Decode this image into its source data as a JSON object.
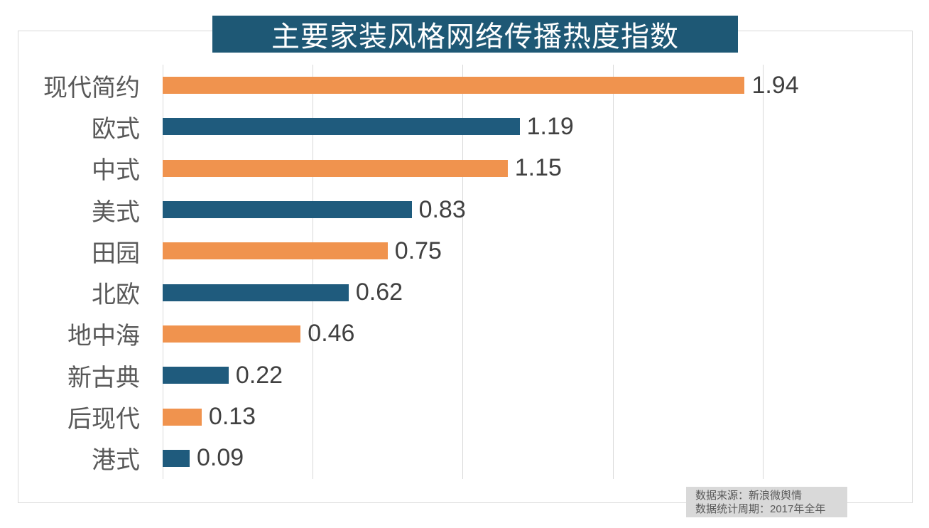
{
  "chart_data": {
    "type": "bar",
    "orientation": "horizontal",
    "title": "主要家装风格网络传播热度指数",
    "categories": [
      "现代简约",
      "欧式",
      "中式",
      "美式",
      "田园",
      "北欧",
      "地中海",
      "新古典",
      "后现代",
      "港式"
    ],
    "values": [
      1.94,
      1.19,
      1.15,
      0.83,
      0.75,
      0.62,
      0.46,
      0.22,
      0.13,
      0.09
    ],
    "value_labels": [
      "1.94",
      "1.19",
      "1.15",
      "0.83",
      "0.75",
      "0.62",
      "0.46",
      "0.22",
      "0.13",
      "0.09"
    ],
    "xlim": [
      0,
      2.5
    ],
    "x_gridlines": [
      0.5,
      1.0,
      1.5,
      2.0
    ],
    "grid": "vertical-only",
    "legend": "none",
    "bar_color_pattern": [
      "#F0934E",
      "#1F5B7D"
    ]
  },
  "source_note": {
    "line1": "数据来源：新浪微舆情",
    "line2": "数据统计周期：2017年全年"
  },
  "colors": {
    "title_bg": "#1E5875",
    "title_text": "#FFFFFF",
    "bar_orange": "#F0934E",
    "bar_teal": "#1F5B7D",
    "gridline": "#D9D9D9",
    "frame_border": "#D9D9D9",
    "category_text": "#595959",
    "value_text": "#404040",
    "note_bg": "#D9D9D9",
    "note_text": "#595959"
  }
}
